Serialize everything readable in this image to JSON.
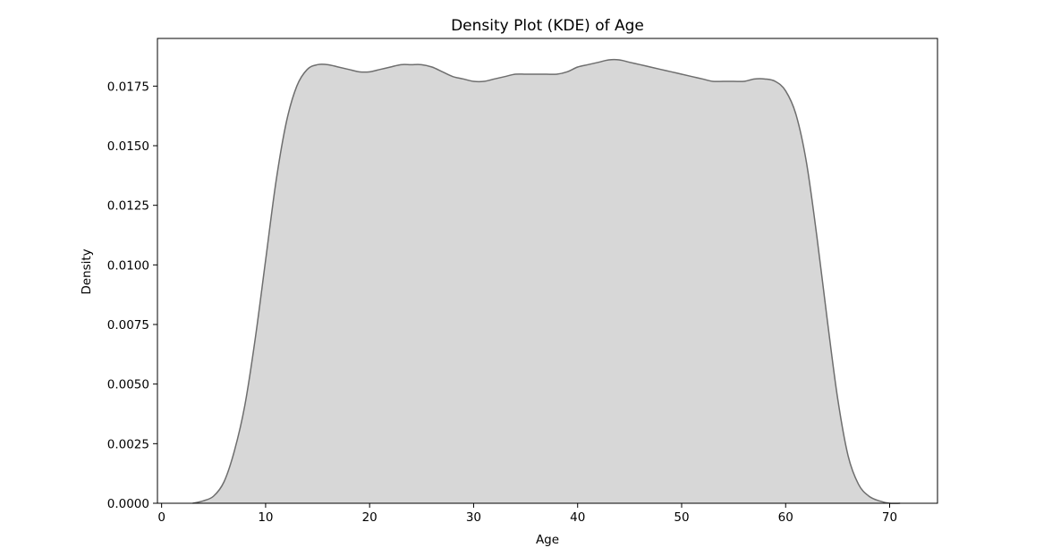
{
  "chart_data": {
    "type": "area",
    "title": "Density Plot (KDE) of Age",
    "xlabel": "Age",
    "ylabel": "Density",
    "xlim": [
      -0.4,
      74.6
    ],
    "ylim": [
      0,
      0.0195
    ],
    "xticks": [
      0,
      10,
      20,
      30,
      40,
      50,
      60,
      70
    ],
    "xtick_labels": [
      "0",
      "10",
      "20",
      "30",
      "40",
      "50",
      "60",
      "70"
    ],
    "yticks": [
      0,
      0.0025,
      0.005,
      0.0075,
      0.01,
      0.0125,
      0.015,
      0.0175
    ],
    "ytick_labels": [
      "0.0000",
      "0.0025",
      "0.0050",
      "0.0075",
      "0.0100",
      "0.0125",
      "0.0150",
      "0.0175"
    ],
    "grid": false,
    "legend": "none",
    "fill_color": "#d7d7d7",
    "line_color": "#6e6e6e",
    "series": [
      {
        "x": [
          3,
          4,
          5,
          6,
          7,
          8,
          9,
          10,
          11,
          12,
          13,
          14,
          15,
          16,
          17,
          18,
          19,
          20,
          21,
          22,
          23,
          24,
          25,
          26,
          27,
          28,
          29,
          30,
          31,
          32,
          33,
          34,
          35,
          36,
          37,
          38,
          39,
          40,
          41,
          42,
          43,
          44,
          45,
          46,
          47,
          48,
          49,
          50,
          51,
          52,
          53,
          54,
          55,
          56,
          57,
          58,
          59,
          60,
          61,
          62,
          63,
          64,
          65,
          66,
          67,
          68,
          69,
          70,
          71
        ],
        "y": [
          0.0,
          0.0001,
          0.0003,
          0.0009,
          0.0022,
          0.0041,
          0.0069,
          0.0102,
          0.0135,
          0.016,
          0.0175,
          0.0182,
          0.0184,
          0.0184,
          0.0183,
          0.0182,
          0.0181,
          0.0181,
          0.0182,
          0.0183,
          0.0184,
          0.0184,
          0.0184,
          0.0183,
          0.0181,
          0.0179,
          0.0178,
          0.0177,
          0.0177,
          0.0178,
          0.0179,
          0.018,
          0.018,
          0.018,
          0.018,
          0.018,
          0.0181,
          0.0183,
          0.0184,
          0.0185,
          0.0186,
          0.0186,
          0.0185,
          0.0184,
          0.0183,
          0.0182,
          0.0181,
          0.018,
          0.0179,
          0.0178,
          0.0177,
          0.0177,
          0.0177,
          0.0177,
          0.0178,
          0.0178,
          0.0177,
          0.0173,
          0.0163,
          0.0143,
          0.0112,
          0.0077,
          0.0044,
          0.002,
          0.0008,
          0.0003,
          0.0001,
          0.0,
          0.0
        ]
      }
    ]
  }
}
